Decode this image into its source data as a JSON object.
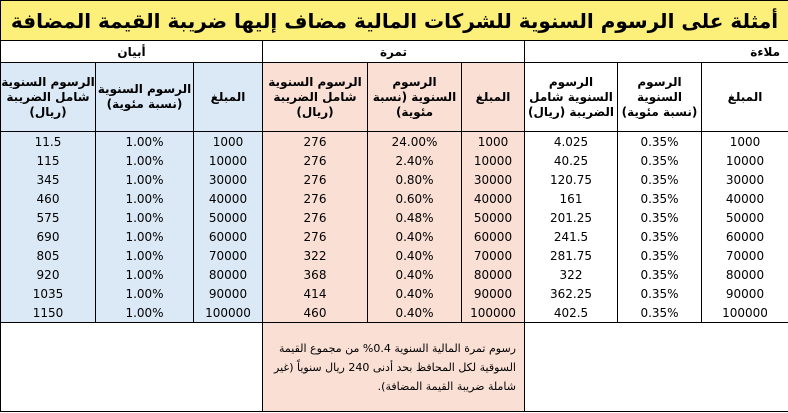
{
  "title": "أمثلة على الرسوم السنوية للشركات المالية مضاف إليها ضريبة القيمة المضافة",
  "groups": {
    "malaa": "ملاءة",
    "tamra": "تمرة",
    "abyan": "أبيان"
  },
  "headers": {
    "amount": "المبلغ",
    "fee_pct": "الرسوم السنوية (نسبة مئوية)",
    "fee_incl": "الرسوم السنوية شامل الضريبة (ريال)"
  },
  "rows": [
    {
      "m_amount": "1000",
      "m_pct": "0.35%",
      "m_fee": "4.025",
      "t_amount": "1000",
      "t_pct": "24.00%",
      "t_fee": "276",
      "a_amount": "1000",
      "a_pct": "1.00%",
      "a_fee": "11.5"
    },
    {
      "m_amount": "10000",
      "m_pct": "0.35%",
      "m_fee": "40.25",
      "t_amount": "10000",
      "t_pct": "2.40%",
      "t_fee": "276",
      "a_amount": "10000",
      "a_pct": "1.00%",
      "a_fee": "115"
    },
    {
      "m_amount": "30000",
      "m_pct": "0.35%",
      "m_fee": "120.75",
      "t_amount": "30000",
      "t_pct": "0.80%",
      "t_fee": "276",
      "a_amount": "30000",
      "a_pct": "1.00%",
      "a_fee": "345"
    },
    {
      "m_amount": "40000",
      "m_pct": "0.35%",
      "m_fee": "161",
      "t_amount": "40000",
      "t_pct": "0.60%",
      "t_fee": "276",
      "a_amount": "40000",
      "a_pct": "1.00%",
      "a_fee": "460"
    },
    {
      "m_amount": "50000",
      "m_pct": "0.35%",
      "m_fee": "201.25",
      "t_amount": "50000",
      "t_pct": "0.48%",
      "t_fee": "276",
      "a_amount": "50000",
      "a_pct": "1.00%",
      "a_fee": "575"
    },
    {
      "m_amount": "60000",
      "m_pct": "0.35%",
      "m_fee": "241.5",
      "t_amount": "60000",
      "t_pct": "0.40%",
      "t_fee": "276",
      "a_amount": "60000",
      "a_pct": "1.00%",
      "a_fee": "690"
    },
    {
      "m_amount": "70000",
      "m_pct": "0.35%",
      "m_fee": "281.75",
      "t_amount": "70000",
      "t_pct": "0.40%",
      "t_fee": "322",
      "a_amount": "70000",
      "a_pct": "1.00%",
      "a_fee": "805"
    },
    {
      "m_amount": "80000",
      "m_pct": "0.35%",
      "m_fee": "322",
      "t_amount": "80000",
      "t_pct": "0.40%",
      "t_fee": "368",
      "a_amount": "80000",
      "a_pct": "1.00%",
      "a_fee": "920"
    },
    {
      "m_amount": "90000",
      "m_pct": "0.35%",
      "m_fee": "362.25",
      "t_amount": "90000",
      "t_pct": "0.40%",
      "t_fee": "414",
      "a_amount": "90000",
      "a_pct": "1.00%",
      "a_fee": "1035"
    },
    {
      "m_amount": "100000",
      "m_pct": "0.35%",
      "m_fee": "402.5",
      "t_amount": "100000",
      "t_pct": "0.40%",
      "t_fee": "460",
      "a_amount": "100000",
      "a_pct": "1.00%",
      "a_fee": "1150"
    }
  ],
  "note": "رسوم تمرة المالية السنوية 0.4% من مجموع القيمة السوقية لكل المحافظ بحد أدنى 240 ريال سنوياً (غير شاملة ضريبة القيمة المضافة)."
}
